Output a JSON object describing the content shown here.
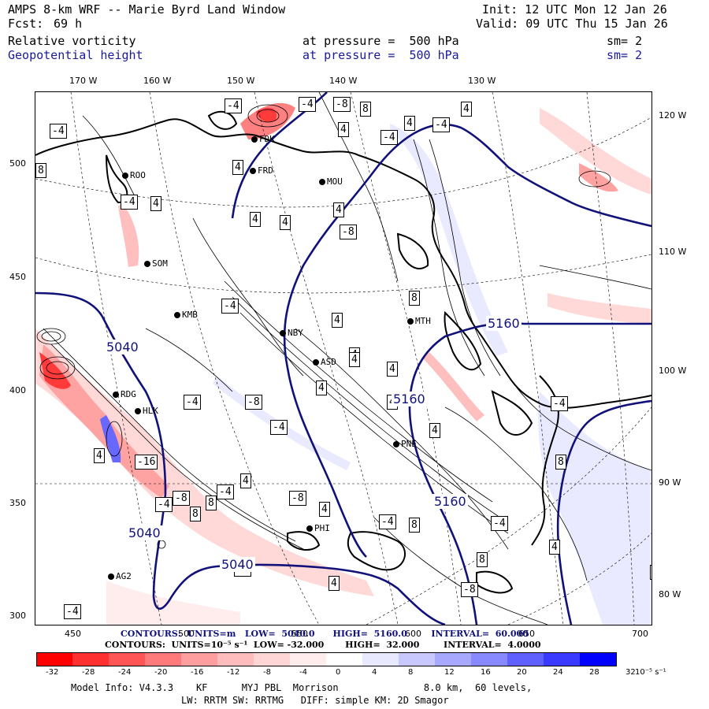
{
  "header": {
    "title": "AMPS 8-km WRF -- Marie Byrd Land Window",
    "fcst_label": "Fcst:",
    "fcst_value": "69 h",
    "init": "Init: 12 UTC Mon 12 Jan 26",
    "valid": "Valid: 09 UTC Thu 15 Jan 26",
    "field1": "Relative vorticity",
    "field2": "Geopotential height",
    "pressure1": "at pressure =  500 hPa",
    "pressure2": "at pressure =  500 hPa",
    "sm1": "sm= 2",
    "sm2": "sm= 2"
  },
  "axes": {
    "top_lon": [
      "170 W",
      "160 W",
      "150 W",
      "140 W",
      "130 W"
    ],
    "right_lon": [
      "120 W",
      "110 W",
      "100 W",
      "90 W",
      "80 W"
    ],
    "left_y": [
      "500",
      "450",
      "400",
      "350",
      "300"
    ],
    "bottom_x": [
      "450",
      "500",
      "550",
      "600",
      "650",
      "700"
    ]
  },
  "stations": [
    "ROO",
    "FRD",
    "MOU",
    "SOM",
    "KMB",
    "NBY",
    "MTH",
    "ASD",
    "PNE",
    "RDG",
    "HLK",
    "AG2",
    "PHI",
    "FDK"
  ],
  "height_labels": [
    "5040",
    "5040",
    "5040",
    "5160",
    "5160",
    "5160"
  ],
  "vort_labels": [
    "-4",
    "-4",
    "-8",
    "8",
    "4",
    "-4",
    "4",
    "-4",
    "4",
    "-4",
    "8",
    "-4",
    "4",
    "4",
    "4",
    "4",
    "-8",
    "4",
    "8",
    "-4",
    "4",
    "4",
    "-4",
    "-8",
    "4",
    "-4",
    "4",
    "4",
    "4",
    "4",
    "-16",
    "-8",
    "-4",
    "4",
    "-4",
    "-8",
    "-4",
    "4",
    "8",
    "-8",
    "-4",
    "8",
    "4",
    "4",
    "-4",
    "8",
    "8",
    "4",
    "-4",
    "8",
    "4",
    "-4"
  ],
  "contours": {
    "line1": "CONTOURS:  UNITS=m   LOW=  5040.0      HIGH=  5160.0        INTERVAL=  60.000",
    "line2": "CONTOURS:  UNITS=10⁻⁵ s⁻¹  LOW= -32.000       HIGH=  32.000        INTERVAL=  4.0000"
  },
  "colorbar": {
    "labels": [
      "-32",
      "-28",
      "-24",
      "-20",
      "-16",
      "-12",
      "-8",
      "-4",
      "0",
      "4",
      "8",
      "12",
      "16",
      "20",
      "24",
      "28",
      "32"
    ],
    "unit": "10⁻⁵ s⁻¹",
    "colors": [
      "#ff0000",
      "#ff3030",
      "#ff5555",
      "#ff7a7a",
      "#ff9e9e",
      "#ffbcbc",
      "#ffd6d6",
      "#ffecec",
      "#ffffff",
      "#ffffff",
      "#e8e8ff",
      "#c8c8ff",
      "#a8a8ff",
      "#8888ff",
      "#6060ff",
      "#3a3aff",
      "#0000ff"
    ]
  },
  "footer": {
    "model": "Model Info: V4.3.3    KF      MYJ PBL  Morrison               8.0 km,  60 levels,",
    "line2": "LW: RRTM SW: RRTMG   DIFF: simple KM: 2D Smagor"
  }
}
